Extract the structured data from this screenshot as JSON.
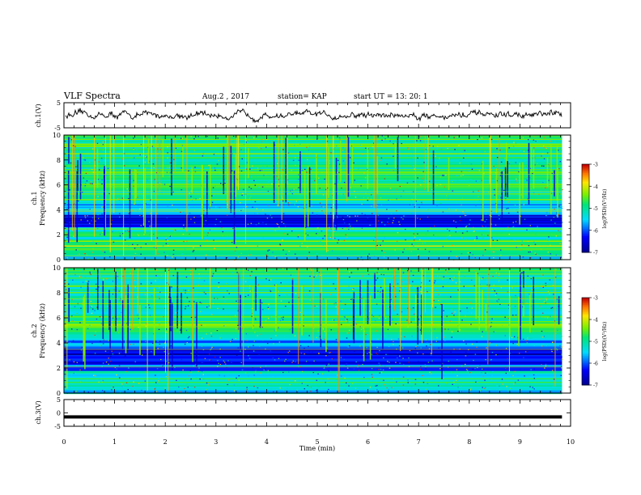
{
  "header": {
    "title": "VLF Spectra",
    "date": "Aug.2 , 2017",
    "station": "station= KAP",
    "start": "start UT = 13: 20: 1"
  },
  "chart_data": [
    {
      "type": "line",
      "panel": "ch1-waveform",
      "ylabel": "ch.1(V)",
      "ylim": [
        -5,
        5
      ],
      "yticks": [
        "5",
        "-5"
      ],
      "xlim": [
        0,
        10
      ],
      "x_end": 9.83,
      "approx_level": 0
    },
    {
      "type": "heatmap",
      "panel": "ch1-spectrogram",
      "ylabel_top": "ch.1",
      "ylabel": "Frequency (kHz)",
      "ylim": [
        0,
        10
      ],
      "yticks": [
        "0",
        "2",
        "4",
        "6",
        "8",
        "10"
      ],
      "xlim": [
        0,
        10
      ],
      "x_end": 9.83,
      "colorbar": {
        "label": "log(PSD)(V²/Hz)",
        "range": [
          -7,
          -3
        ],
        "ticks": [
          "-3",
          "-4",
          "-5",
          "-6",
          "-7"
        ]
      },
      "bands_kHz": [
        {
          "from": 0.0,
          "to": 0.6,
          "level": -5.2
        },
        {
          "from": 0.6,
          "to": 1.6,
          "level": -4.4
        },
        {
          "from": 1.6,
          "to": 2.6,
          "level": -5.1
        },
        {
          "from": 2.6,
          "to": 3.6,
          "level": -6.3
        },
        {
          "from": 3.6,
          "to": 4.6,
          "level": -5.7
        },
        {
          "from": 4.6,
          "to": 6.0,
          "level": -4.9
        },
        {
          "from": 6.0,
          "to": 10.0,
          "level": -4.8
        }
      ]
    },
    {
      "type": "heatmap",
      "panel": "ch2-spectrogram",
      "ylabel_top": "ch.2",
      "ylabel": "Frequency (kHz)",
      "ylim": [
        0,
        10
      ],
      "yticks": [
        "0",
        "2",
        "4",
        "6",
        "8",
        "10"
      ],
      "xlim": [
        0,
        10
      ],
      "x_end": 9.83,
      "colorbar": {
        "label": "log(PSD)(V²/Hz)",
        "range": [
          -7,
          -3
        ],
        "ticks": [
          "-3",
          "-4",
          "-5",
          "-6",
          "-7"
        ]
      },
      "bands_kHz": [
        {
          "from": 0.0,
          "to": 0.5,
          "level": -5.4
        },
        {
          "from": 0.5,
          "to": 1.8,
          "level": -5.1
        },
        {
          "from": 1.8,
          "to": 2.4,
          "level": -5.8
        },
        {
          "from": 2.4,
          "to": 3.6,
          "level": -6.5
        },
        {
          "from": 3.6,
          "to": 4.6,
          "level": -5.6
        },
        {
          "from": 4.6,
          "to": 6.2,
          "level": -4.7
        },
        {
          "from": 6.2,
          "to": 10.0,
          "level": -5.0
        }
      ]
    },
    {
      "type": "line",
      "panel": "ch3-waveform",
      "ylabel": "ch.3(V)",
      "ylim": [
        -5,
        5
      ],
      "yticks": [
        "5",
        "0",
        "-5"
      ],
      "xlim": [
        0,
        10
      ],
      "x_end": 9.83,
      "xlabel": "Time (min)",
      "xticks": [
        "0",
        "1",
        "2",
        "3",
        "4",
        "5",
        "6",
        "7",
        "8",
        "9",
        "10"
      ],
      "approx_level": -1.5
    }
  ]
}
